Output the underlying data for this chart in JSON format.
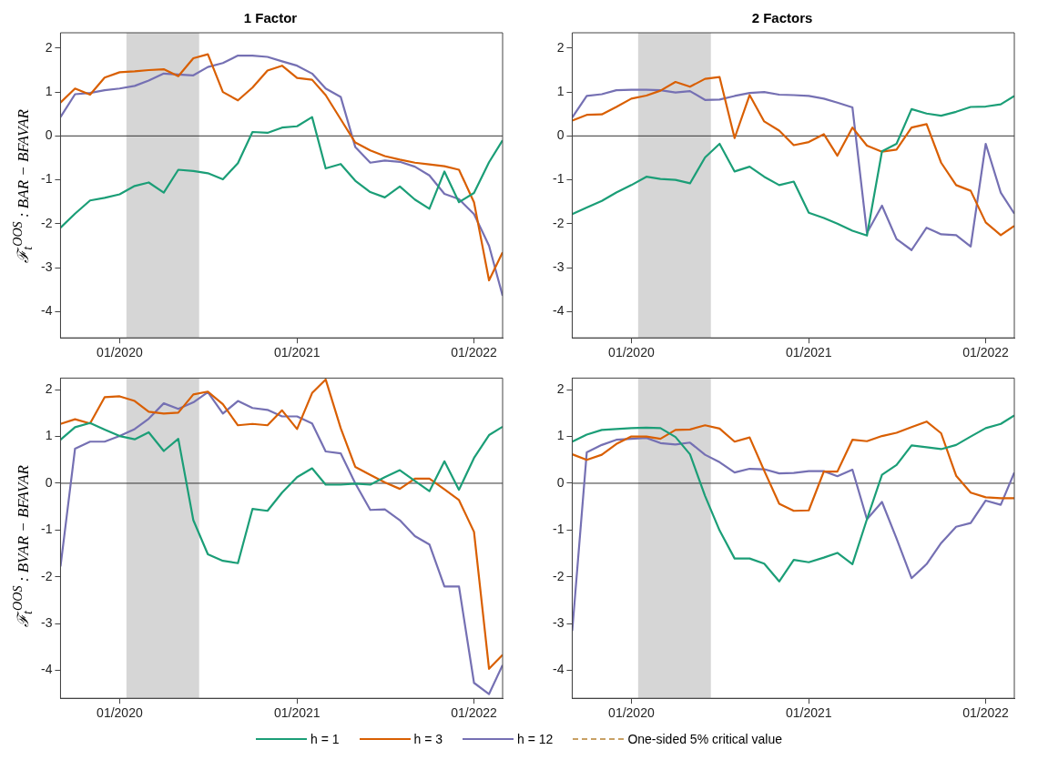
{
  "chart_data": [
    {
      "type": "line",
      "title": "1 Factor",
      "ylabel": "ℱ$_{t}$$^{OOS}$ : BAR − BFAVAR",
      "legend": "bottom",
      "x": [
        "2019-09",
        "2019-10",
        "2019-11",
        "2019-12",
        "2020-01",
        "2020-02",
        "2020-03",
        "2020-04",
        "2020-05",
        "2020-06",
        "2020-07",
        "2020-08",
        "2020-09",
        "2020-10",
        "2020-11",
        "2020-12",
        "2021-01",
        "2021-02",
        "2021-03",
        "2021-04",
        "2021-05",
        "2021-06",
        "2021-07",
        "2021-08",
        "2021-09",
        "2021-10",
        "2021-11",
        "2021-12",
        "2022-01",
        "2022-02",
        "2022-03"
      ],
      "series": [
        {
          "name": "h = 1",
          "color": "#1b9e77",
          "values": [
            -2.09,
            -1.77,
            -1.47,
            -1.41,
            -1.33,
            -1.14,
            -1.06,
            -1.29,
            -0.77,
            -0.8,
            -0.85,
            -0.99,
            -0.62,
            0.09,
            0.07,
            0.19,
            0.22,
            0.43,
            -0.74,
            -0.64,
            -1.02,
            -1.28,
            -1.4,
            -1.15,
            -1.45,
            -1.66,
            -0.81,
            -1.51,
            -1.3,
            -0.6,
            -0.1
          ]
        },
        {
          "name": "h = 3",
          "color": "#d95f02",
          "values": [
            0.76,
            1.08,
            0.94,
            1.33,
            1.45,
            1.47,
            1.5,
            1.52,
            1.36,
            1.77,
            1.86,
            1.0,
            0.81,
            1.1,
            1.49,
            1.6,
            1.32,
            1.28,
            0.93,
            0.38,
            -0.15,
            -0.33,
            -0.46,
            -0.54,
            -0.61,
            -0.65,
            -0.69,
            -0.77,
            -1.51,
            -3.29,
            -2.65
          ]
        },
        {
          "name": "h = 12",
          "color": "#7570b3",
          "values": [
            0.43,
            0.95,
            0.98,
            1.04,
            1.08,
            1.14,
            1.26,
            1.42,
            1.4,
            1.38,
            1.57,
            1.66,
            1.83,
            1.83,
            1.8,
            1.7,
            1.6,
            1.42,
            1.08,
            0.89,
            -0.25,
            -0.61,
            -0.56,
            -0.59,
            -0.7,
            -0.9,
            -1.32,
            -1.44,
            -1.78,
            -2.5,
            -3.64
          ]
        },
        {
          "name": "One-sided 5% critical value",
          "color": "#c8a064",
          "line_style": "dashed",
          "values": [
            null,
            null,
            null,
            null,
            null,
            null,
            null,
            null,
            null,
            null,
            null,
            null,
            null,
            null,
            null,
            null,
            null,
            null,
            null,
            null,
            null,
            null,
            null,
            null,
            null,
            null,
            null,
            null,
            null,
            null,
            null
          ]
        }
      ],
      "xlim": [
        "2019-09",
        "2022-03"
      ],
      "xticks": [
        {
          "value": "2020-01",
          "label": "01/2020"
        },
        {
          "value": "2021-01",
          "label": "01/2021"
        },
        {
          "value": "2022-01",
          "label": "01/2022"
        }
      ],
      "ylim": [
        -4.6,
        2.35
      ],
      "yticks": [
        -4,
        -3,
        -2,
        -1,
        0,
        1,
        2
      ],
      "bands": [
        {
          "axis": "x",
          "from": "2020-01-15",
          "to": "2020-06-13",
          "color": "#d6d6d6"
        }
      ],
      "ref_lines": [
        {
          "axis": "y",
          "value": 0,
          "color": "#333333"
        }
      ]
    },
    {
      "type": "line",
      "title": "2 Factors",
      "x": [
        "2019-09",
        "2019-10",
        "2019-11",
        "2019-12",
        "2020-01",
        "2020-02",
        "2020-03",
        "2020-04",
        "2020-05",
        "2020-06",
        "2020-07",
        "2020-08",
        "2020-09",
        "2020-10",
        "2020-11",
        "2020-12",
        "2021-01",
        "2021-02",
        "2021-03",
        "2021-04",
        "2021-05",
        "2021-06",
        "2021-07",
        "2021-08",
        "2021-09",
        "2021-10",
        "2021-11",
        "2021-12",
        "2022-01",
        "2022-02",
        "2022-03"
      ],
      "series": [
        {
          "color": "#1b9e77",
          "values": [
            -1.78,
            -1.63,
            -1.48,
            -1.29,
            -1.12,
            -0.93,
            -0.98,
            -1.0,
            -1.08,
            -0.49,
            -0.18,
            -0.81,
            -0.7,
            -0.93,
            -1.12,
            -1.04,
            -1.75,
            -1.87,
            -2.0,
            -2.16,
            -2.27,
            -0.35,
            -0.18,
            0.61,
            0.51,
            0.46,
            0.55,
            0.66,
            0.67,
            0.72,
            0.91
          ]
        },
        {
          "color": "#d95f02",
          "values": [
            0.35,
            0.48,
            0.49,
            0.66,
            0.85,
            0.92,
            1.03,
            1.23,
            1.12,
            1.3,
            1.34,
            -0.05,
            0.93,
            0.33,
            0.12,
            -0.21,
            -0.14,
            0.04,
            -0.45,
            0.19,
            -0.22,
            -0.36,
            -0.31,
            0.19,
            0.27,
            -0.61,
            -1.12,
            -1.25,
            -1.97,
            -2.26,
            -2.05
          ]
        },
        {
          "color": "#7570b3",
          "values": [
            0.42,
            0.91,
            0.95,
            1.04,
            1.05,
            1.05,
            1.04,
            0.99,
            1.02,
            0.82,
            0.83,
            0.91,
            0.98,
            1.0,
            0.94,
            0.93,
            0.91,
            0.85,
            0.76,
            0.65,
            -2.21,
            -1.59,
            -2.35,
            -2.6,
            -2.09,
            -2.24,
            -2.26,
            -2.52,
            -0.18,
            -1.29,
            -1.77
          ]
        }
      ],
      "xlim": [
        "2019-09",
        "2022-03"
      ],
      "xticks": [
        {
          "value": "2020-01",
          "label": "01/2020"
        },
        {
          "value": "2021-01",
          "label": "01/2021"
        },
        {
          "value": "2022-01",
          "label": "01/2022"
        }
      ],
      "ylim": [
        -4.6,
        2.35
      ],
      "yticks": [
        -4,
        -3,
        -2,
        -1,
        0,
        1,
        2
      ],
      "bands": [
        {
          "axis": "x",
          "from": "2020-01-15",
          "to": "2020-06-13",
          "color": "#d6d6d6"
        }
      ],
      "ref_lines": [
        {
          "axis": "y",
          "value": 0,
          "color": "#333333"
        }
      ]
    },
    {
      "type": "line",
      "ylabel": "ℱ$_{t}$$^{OOS}$ : BVAR − BFAVAR",
      "x": [
        "2019-09",
        "2019-10",
        "2019-11",
        "2019-12",
        "2020-01",
        "2020-02",
        "2020-03",
        "2020-04",
        "2020-05",
        "2020-06",
        "2020-07",
        "2020-08",
        "2020-09",
        "2020-10",
        "2020-11",
        "2020-12",
        "2021-01",
        "2021-02",
        "2021-03",
        "2021-04",
        "2021-05",
        "2021-06",
        "2021-07",
        "2021-08",
        "2021-09",
        "2021-10",
        "2021-11",
        "2021-12",
        "2022-01",
        "2022-02",
        "2022-03"
      ],
      "series": [
        {
          "color": "#1b9e77",
          "values": [
            0.93,
            1.2,
            1.29,
            1.15,
            1.01,
            0.94,
            1.09,
            0.69,
            0.95,
            -0.79,
            -1.52,
            -1.66,
            -1.71,
            -0.55,
            -0.59,
            -0.2,
            0.13,
            0.32,
            -0.03,
            -0.03,
            -0.01,
            -0.03,
            0.13,
            0.28,
            0.05,
            -0.17,
            0.47,
            -0.14,
            0.54,
            1.03,
            1.21
          ]
        },
        {
          "color": "#d95f02",
          "values": [
            1.27,
            1.37,
            1.28,
            1.84,
            1.86,
            1.76,
            1.53,
            1.49,
            1.51,
            1.9,
            1.96,
            1.69,
            1.24,
            1.27,
            1.24,
            1.56,
            1.16,
            1.93,
            2.22,
            1.18,
            0.35,
            0.18,
            0.02,
            -0.12,
            0.1,
            0.1,
            -0.13,
            -0.36,
            -1.04,
            -3.97,
            -3.67
          ]
        },
        {
          "color": "#7570b3",
          "values": [
            -1.78,
            0.74,
            0.89,
            0.89,
            1.01,
            1.16,
            1.38,
            1.71,
            1.59,
            1.73,
            1.95,
            1.49,
            1.76,
            1.61,
            1.57,
            1.43,
            1.43,
            1.28,
            0.68,
            0.64,
            0.0,
            -0.57,
            -0.56,
            -0.79,
            -1.13,
            -1.31,
            -2.21,
            -2.21,
            -4.27,
            -4.51,
            -3.89
          ]
        }
      ],
      "xlim": [
        "2019-09",
        "2022-03"
      ],
      "xticks": [
        {
          "value": "2020-01",
          "label": "01/2020"
        },
        {
          "value": "2021-01",
          "label": "01/2021"
        },
        {
          "value": "2022-01",
          "label": "01/2022"
        }
      ],
      "ylim": [
        -4.6,
        2.25
      ],
      "yticks": [
        -4,
        -3,
        -2,
        -1,
        0,
        1,
        2
      ],
      "bands": [
        {
          "axis": "x",
          "from": "2020-01-15",
          "to": "2020-06-13",
          "color": "#d6d6d6"
        }
      ],
      "ref_lines": [
        {
          "axis": "y",
          "value": 0,
          "color": "#333333"
        }
      ]
    },
    {
      "type": "line",
      "x": [
        "2019-09",
        "2019-10",
        "2019-11",
        "2019-12",
        "2020-01",
        "2020-02",
        "2020-03",
        "2020-04",
        "2020-05",
        "2020-06",
        "2020-07",
        "2020-08",
        "2020-09",
        "2020-10",
        "2020-11",
        "2020-12",
        "2021-01",
        "2021-02",
        "2021-03",
        "2021-04",
        "2021-05",
        "2021-06",
        "2021-07",
        "2021-08",
        "2021-09",
        "2021-10",
        "2021-11",
        "2021-12",
        "2022-01",
        "2022-02",
        "2022-03"
      ],
      "series": [
        {
          "color": "#1b9e77",
          "values": [
            0.89,
            1.04,
            1.14,
            1.16,
            1.18,
            1.19,
            1.18,
            0.99,
            0.62,
            -0.27,
            -1.01,
            -1.61,
            -1.61,
            -1.72,
            -2.1,
            -1.64,
            -1.69,
            -1.59,
            -1.49,
            -1.73,
            -0.77,
            0.18,
            0.39,
            0.81,
            0.77,
            0.73,
            0.82,
            1.0,
            1.18,
            1.27,
            1.45
          ]
        },
        {
          "color": "#d95f02",
          "values": [
            0.62,
            0.5,
            0.61,
            0.84,
            1.0,
            1.0,
            0.95,
            1.14,
            1.15,
            1.24,
            1.17,
            0.89,
            0.98,
            0.27,
            -0.44,
            -0.59,
            -0.58,
            0.25,
            0.25,
            0.93,
            0.9,
            1.01,
            1.08,
            1.2,
            1.32,
            1.07,
            0.16,
            -0.2,
            -0.3,
            -0.32,
            -0.32
          ]
        },
        {
          "color": "#7570b3",
          "values": [
            -3.16,
            0.66,
            0.82,
            0.93,
            0.95,
            0.97,
            0.86,
            0.83,
            0.87,
            0.61,
            0.45,
            0.23,
            0.31,
            0.3,
            0.21,
            0.22,
            0.26,
            0.26,
            0.15,
            0.29,
            -0.77,
            -0.4,
            -1.18,
            -2.03,
            -1.73,
            -1.28,
            -0.93,
            -0.85,
            -0.37,
            -0.46,
            0.23
          ]
        }
      ],
      "xlim": [
        "2019-09",
        "2022-03"
      ],
      "xticks": [
        {
          "value": "2020-01",
          "label": "01/2020"
        },
        {
          "value": "2021-01",
          "label": "01/2021"
        },
        {
          "value": "2022-01",
          "label": "01/2022"
        }
      ],
      "ylim": [
        -4.6,
        2.25
      ],
      "yticks": [
        -4,
        -3,
        -2,
        -1,
        0,
        1,
        2
      ],
      "bands": [
        {
          "axis": "x",
          "from": "2020-01-15",
          "to": "2020-06-13",
          "color": "#d6d6d6"
        }
      ],
      "ref_lines": [
        {
          "axis": "y",
          "value": 0,
          "color": "#333333"
        }
      ]
    }
  ]
}
